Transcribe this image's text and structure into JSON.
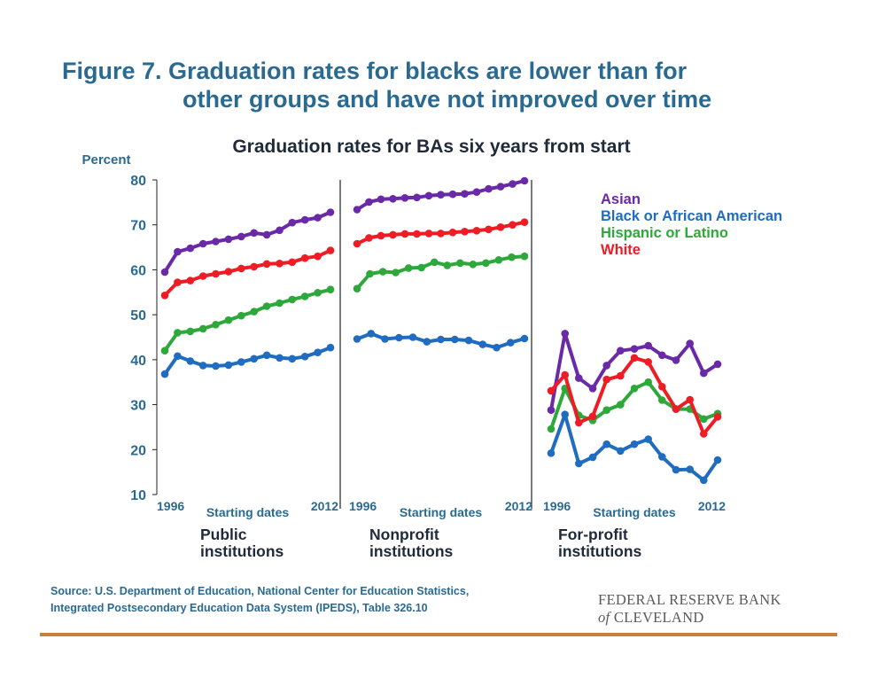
{
  "figure": {
    "title_line1": "Figure 7. Graduation rates for blacks are lower than for",
    "title_line2": "other groups and have not improved over time",
    "source_line1": "Source: U.S. Department of Education, National Center for Education Statistics,",
    "source_line2": "Integrated Postsecondary Education Data System (IPEDS), Table 326.10",
    "logo_line1": "FEDERAL RESERVE BANK",
    "logo_of": "of",
    "logo_line2": "CLEVELAND"
  },
  "chart_data": {
    "type": "line",
    "title": "Graduation rates for BAs six years from start",
    "ylabel": "Percent",
    "ylim": [
      10,
      80
    ],
    "yticks": [
      10,
      20,
      30,
      40,
      50,
      60,
      70,
      80
    ],
    "colors": {
      "Asian": "#6a2aa8",
      "Black or African American": "#1f6cc0",
      "Hispanic or Latino": "#2ea83a",
      "White": "#ee1c24"
    },
    "legend": [
      "Asian",
      "Black or African American",
      "Hispanic or Latino",
      "White"
    ],
    "legend_position": "top-right",
    "panels": [
      {
        "xlabel": "Starting dates",
        "xtick_first": "1996",
        "xtick_last": "2012",
        "panel_label": [
          "Public",
          "institutions"
        ],
        "x": [
          1996,
          1997,
          1998,
          1999,
          2000,
          2001,
          2002,
          2003,
          2004,
          2005,
          2006,
          2007,
          2008,
          2009,
          2010,
          2011,
          2012
        ],
        "series": [
          {
            "name": "Asian",
            "values": [
              59.5,
              64.0,
              64.8,
              65.8,
              66.3,
              66.8,
              67.4,
              68.2,
              67.8,
              68.8,
              70.5,
              71.1,
              71.6,
              72.8
            ]
          },
          {
            "name": "White",
            "values": [
              54.3,
              57.2,
              57.6,
              58.6,
              59.1,
              59.6,
              60.3,
              60.7,
              61.3,
              61.4,
              61.7,
              62.6,
              63.0,
              64.3
            ]
          },
          {
            "name": "Hispanic or Latino",
            "values": [
              42.0,
              46.0,
              46.3,
              46.9,
              47.8,
              48.8,
              49.8,
              50.7,
              51.9,
              52.6,
              53.4,
              54.1,
              54.9,
              55.6
            ]
          },
          {
            "name": "Black or African American",
            "values": [
              36.8,
              40.8,
              39.7,
              38.7,
              38.6,
              38.8,
              39.5,
              40.2,
              41.0,
              40.4,
              40.2,
              40.7,
              41.6,
              42.7
            ]
          }
        ]
      },
      {
        "xlabel": "Starting dates",
        "xtick_first": "1996",
        "xtick_last": "2012",
        "panel_label": [
          "Nonprofit",
          "institutions"
        ],
        "x": [
          1996,
          1997,
          1998,
          1999,
          2000,
          2001,
          2002,
          2003,
          2004,
          2005,
          2006,
          2007,
          2008,
          2009,
          2010,
          2011,
          2012
        ],
        "series": [
          {
            "name": "Asian",
            "values": [
              73.4,
              75.1,
              75.7,
              75.8,
              76.0,
              76.1,
              76.5,
              76.7,
              76.8,
              76.9,
              77.3,
              78.0,
              78.5,
              79.1,
              79.8
            ]
          },
          {
            "name": "White",
            "values": [
              65.8,
              67.1,
              67.6,
              67.8,
              68.0,
              68.0,
              68.1,
              68.1,
              68.3,
              68.5,
              68.7,
              69.0,
              69.5,
              70.0,
              70.6
            ]
          },
          {
            "name": "Hispanic or Latino",
            "values": [
              55.8,
              59.1,
              59.6,
              59.4,
              60.4,
              60.5,
              61.7,
              61.0,
              61.5,
              61.2,
              61.5,
              62.2,
              62.8,
              63.0
            ]
          },
          {
            "name": "Black or African American",
            "values": [
              44.6,
              45.8,
              44.6,
              44.9,
              45.0,
              44.0,
              44.5,
              44.5,
              44.3,
              43.4,
              42.7,
              43.8,
              44.7
            ]
          }
        ]
      },
      {
        "xlabel": "Starting dates",
        "xtick_first": "1996",
        "xtick_last": "2012",
        "panel_label": [
          "For-profit",
          "institutions"
        ],
        "x": [
          1996,
          1997,
          1998,
          1999,
          2000,
          2001,
          2002,
          2003,
          2004,
          2005,
          2006,
          2007,
          2008,
          2009,
          2010,
          2011,
          2012
        ],
        "series": [
          {
            "name": "Asian",
            "values": [
              28.8,
              45.8,
              35.9,
              33.6,
              38.7,
              42.0,
              42.4,
              43.1,
              41.0,
              39.9,
              43.6,
              37.0,
              39.0
            ]
          },
          {
            "name": "Black or African American",
            "values": [
              19.2,
              27.8,
              16.9,
              18.3,
              21.2,
              19.7,
              21.2,
              22.3,
              18.4,
              15.5,
              15.6,
              13.2,
              17.7
            ]
          },
          {
            "name": "Hispanic or Latino",
            "values": [
              24.6,
              33.6,
              27.6,
              26.5,
              28.8,
              30.0,
              33.6,
              35.0,
              31.0,
              29.0,
              29.0,
              26.8,
              28.0
            ]
          },
          {
            "name": "White",
            "values": [
              33.1,
              36.6,
              26.0,
              27.4,
              35.6,
              36.4,
              40.4,
              39.5,
              34.0,
              29.0,
              31.1,
              23.5,
              27.3
            ]
          }
        ]
      }
    ]
  }
}
